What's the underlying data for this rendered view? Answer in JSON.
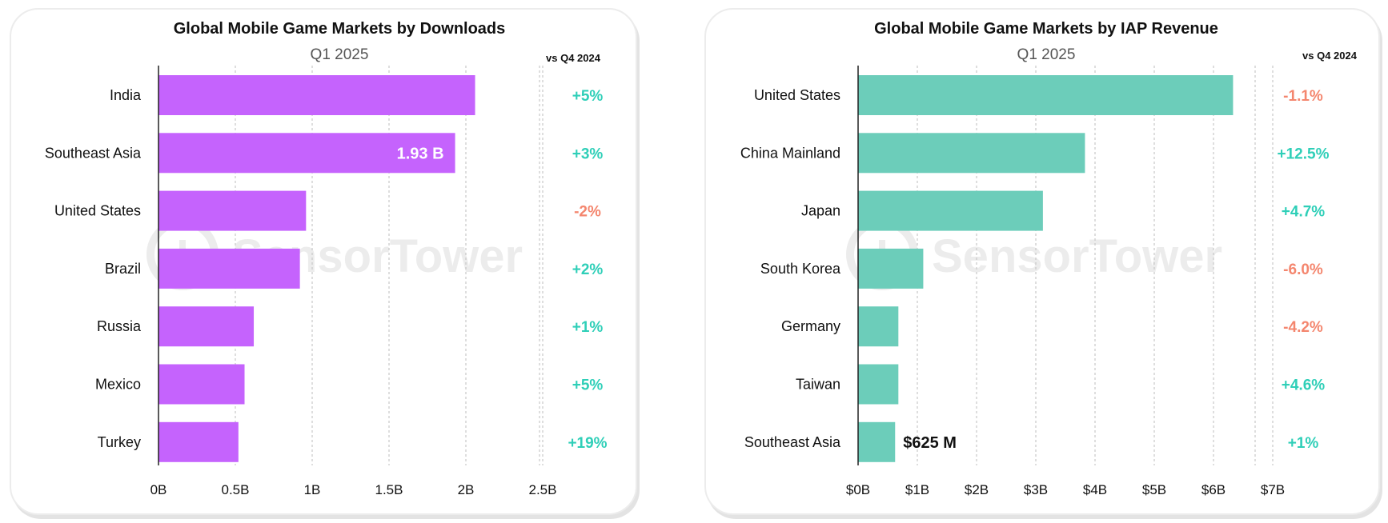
{
  "watermark": "SensorTower",
  "colors": {
    "downloads_bar": "#c563fd",
    "revenue_bar": "#6ccdba",
    "positive": "#2fcfb8",
    "negative": "#f4866e",
    "gridline": "#c8c8c8",
    "axis": "#222222",
    "text": "#111111",
    "subtitle": "#555555"
  },
  "chart_data": [
    {
      "type": "bar",
      "orientation": "horizontal",
      "title": "Global Mobile Game Markets by Downloads",
      "subtitle": "Q1 2025",
      "change_header": "vs Q4 2024",
      "categories": [
        "India",
        "Southeast Asia",
        "United States",
        "Brazil",
        "Russia",
        "Mexico",
        "Turkey"
      ],
      "values": [
        2.06,
        1.93,
        0.96,
        0.92,
        0.62,
        0.56,
        0.52
      ],
      "unit": "B",
      "xlim": [
        0,
        2.5
      ],
      "xticks": [
        0,
        0.5,
        1,
        1.5,
        2,
        2.5
      ],
      "xtick_labels": [
        "0B",
        "0.5B",
        "1B",
        "1.5B",
        "2B",
        "2.5B"
      ],
      "changes": [
        "+5%",
        "+3%",
        "-2%",
        "+2%",
        "+1%",
        "+5%",
        "+19%"
      ],
      "data_label": {
        "category": "Southeast Asia",
        "text": "1.93 B",
        "placement": "inside-end"
      },
      "grid": true
    },
    {
      "type": "bar",
      "orientation": "horizontal",
      "title": "Global Mobile Game Markets by IAP Revenue",
      "subtitle": "Q1 2025",
      "change_header": "vs Q4 2024",
      "categories": [
        "United States",
        "China Mainland",
        "Japan",
        "South Korea",
        "Germany",
        "Taiwan",
        "Southeast Asia"
      ],
      "values": [
        6.33,
        3.83,
        3.12,
        1.1,
        0.68,
        0.68,
        0.625
      ],
      "unit": "$B",
      "xlim": [
        0,
        7
      ],
      "xticks": [
        0,
        1,
        2,
        3,
        4,
        5,
        6,
        7
      ],
      "xtick_labels": [
        "$0B",
        "$1B",
        "$2B",
        "$3B",
        "$4B",
        "$5B",
        "$6B",
        "$7B"
      ],
      "changes": [
        "-1.1%",
        "+12.5%",
        "+4.7%",
        "-6.0%",
        "-4.2%",
        "+4.6%",
        "+1%"
      ],
      "data_label": {
        "category": "Southeast Asia",
        "text": "$625 M",
        "placement": "outside-end"
      },
      "grid": true
    }
  ]
}
